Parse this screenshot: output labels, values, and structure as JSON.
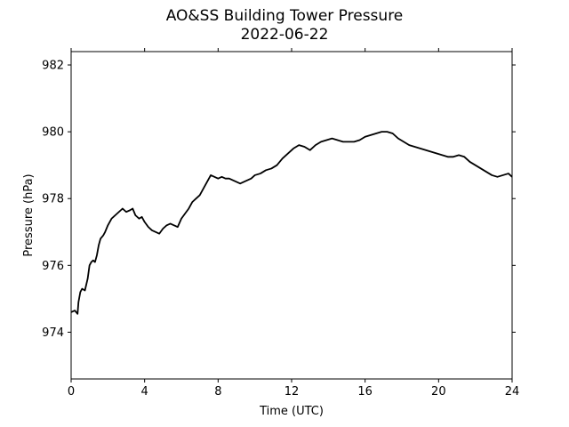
{
  "chart_data": {
    "type": "line",
    "title": "AO&SS Building Tower Pressure",
    "subtitle": "2022-06-22",
    "xlabel": "Time (UTC)",
    "ylabel": "Pressure (hPa)",
    "xlim": [
      0,
      24
    ],
    "ylim": [
      972.6,
      982.4
    ],
    "xticks": [
      0,
      4,
      8,
      12,
      16,
      20,
      24
    ],
    "yticks": [
      974,
      976,
      978,
      980,
      982
    ],
    "grid": false,
    "line_color": "#000000",
    "series": [
      {
        "x": [
          0,
          0.2,
          0.35,
          0.4,
          0.5,
          0.6,
          0.75,
          0.9,
          1.0,
          1.1,
          1.2,
          1.3,
          1.4,
          1.5,
          1.6,
          1.75,
          1.85,
          2.0,
          2.2,
          2.4,
          2.6,
          2.8,
          3.0,
          3.2,
          3.35,
          3.5,
          3.7,
          3.85,
          4.0,
          4.2,
          4.4,
          4.6,
          4.8,
          5.0,
          5.2,
          5.4,
          5.6,
          5.8,
          6.0,
          6.2,
          6.4,
          6.6,
          6.8,
          7.0,
          7.2,
          7.4,
          7.6,
          7.8,
          8.0,
          8.2,
          8.4,
          8.6,
          8.8,
          9.0,
          9.2,
          9.4,
          9.6,
          9.8,
          10.0,
          10.3,
          10.6,
          10.9,
          11.2,
          11.5,
          11.8,
          12.1,
          12.4,
          12.7,
          13.0,
          13.3,
          13.6,
          13.9,
          14.2,
          14.5,
          14.8,
          15.1,
          15.4,
          15.7,
          16.0,
          16.3,
          16.6,
          16.9,
          17.2,
          17.5,
          17.8,
          18.1,
          18.4,
          18.7,
          19.0,
          19.3,
          19.6,
          19.9,
          20.2,
          20.5,
          20.8,
          21.1,
          21.4,
          21.7,
          22.0,
          22.3,
          22.6,
          22.9,
          23.2,
          23.5,
          23.8,
          24.0
        ],
        "y": [
          974.6,
          974.65,
          974.55,
          974.9,
          975.2,
          975.3,
          975.25,
          975.6,
          976.0,
          976.1,
          976.15,
          976.1,
          976.3,
          976.6,
          976.8,
          976.9,
          977.0,
          977.2,
          977.4,
          977.5,
          977.6,
          977.7,
          977.6,
          977.65,
          977.7,
          977.5,
          977.4,
          977.45,
          977.3,
          977.15,
          977.05,
          977.0,
          976.95,
          977.1,
          977.2,
          977.25,
          977.2,
          977.15,
          977.4,
          977.55,
          977.7,
          977.9,
          978.0,
          978.1,
          978.3,
          978.5,
          978.7,
          978.65,
          978.6,
          978.65,
          978.6,
          978.6,
          978.55,
          978.5,
          978.45,
          978.5,
          978.55,
          978.6,
          978.7,
          978.75,
          978.85,
          978.9,
          979.0,
          979.2,
          979.35,
          979.5,
          979.6,
          979.55,
          979.45,
          979.6,
          979.7,
          979.75,
          979.8,
          979.75,
          979.7,
          979.7,
          979.7,
          979.75,
          979.85,
          979.9,
          979.95,
          980.0,
          980.0,
          979.95,
          979.8,
          979.7,
          979.6,
          979.55,
          979.5,
          979.45,
          979.4,
          979.35,
          979.3,
          979.25,
          979.25,
          979.3,
          979.25,
          979.1,
          979.0,
          978.9,
          978.8,
          978.7,
          978.65,
          978.7,
          978.75,
          978.65
        ]
      }
    ]
  }
}
